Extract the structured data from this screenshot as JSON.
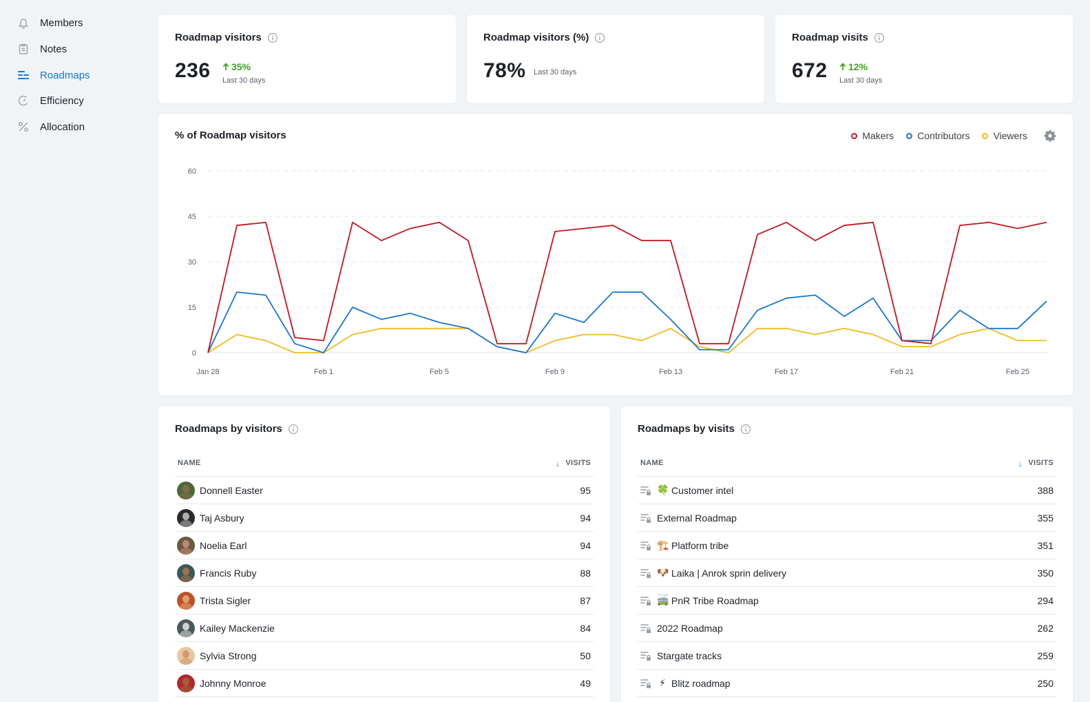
{
  "sidebar": {
    "items": [
      {
        "label": "Members",
        "icon": "bell-icon",
        "active": false
      },
      {
        "label": "Notes",
        "icon": "clipboard-icon",
        "active": false
      },
      {
        "label": "Roadmaps",
        "icon": "roadmap-icon",
        "active": true
      },
      {
        "label": "Efficiency",
        "icon": "gauge-icon",
        "active": false
      },
      {
        "label": "Allocation",
        "icon": "percent-icon",
        "active": false
      }
    ]
  },
  "stats": [
    {
      "title": "Roadmap visitors",
      "value": "236",
      "change": "35%",
      "period": "Last 30 days"
    },
    {
      "title": "Roadmap visitors (%)",
      "value": "78%",
      "change": "",
      "period": "Last 30 days"
    },
    {
      "title": "Roadmap visits",
      "value": "672",
      "change": "12%",
      "period": "Last 30 days"
    }
  ],
  "chart_panel": {
    "title": "% of Roadmap visitors"
  },
  "chart_data": {
    "type": "line",
    "title": "% of Roadmap visitors",
    "x_ticks": [
      "Jan 28",
      "Feb 1",
      "Feb 5",
      "Feb 9",
      "Feb 13",
      "Feb 17",
      "Feb 21",
      "Feb 25"
    ],
    "y_ticks": [
      "0",
      "15",
      "30",
      "45",
      "60"
    ],
    "ylim": [
      0,
      60
    ],
    "x_start": "Jan 28",
    "x": [
      "Jan 28",
      "Jan 29",
      "Jan 30",
      "Jan 31",
      "Feb 1",
      "Feb 2",
      "Feb 3",
      "Feb 4",
      "Feb 5",
      "Feb 6",
      "Feb 7",
      "Feb 8",
      "Feb 9",
      "Feb 10",
      "Feb 11",
      "Feb 12",
      "Feb 13",
      "Feb 14",
      "Feb 15",
      "Feb 16",
      "Feb 17",
      "Feb 18",
      "Feb 19",
      "Feb 20",
      "Feb 21",
      "Feb 22",
      "Feb 23",
      "Feb 24",
      "Feb 25",
      "Feb 26"
    ],
    "grid": true,
    "legend_position": "top-right",
    "series": [
      {
        "name": "Makers",
        "color": "#c4161c",
        "values": [
          0,
          42,
          43,
          5,
          4,
          43,
          37,
          41,
          43,
          37,
          3,
          3,
          40,
          41,
          42,
          37,
          37,
          3,
          3,
          39,
          43,
          37,
          42,
          43,
          4,
          3,
          42,
          43,
          41,
          43
        ]
      },
      {
        "name": "Contributors",
        "color": "#1676d2",
        "values": [
          0,
          20,
          19,
          3,
          0,
          15,
          11,
          13,
          10,
          8,
          2,
          0,
          13,
          10,
          20,
          20,
          11,
          1,
          1,
          14,
          18,
          19,
          12,
          18,
          4,
          4,
          14,
          8,
          8,
          17
        ]
      },
      {
        "name": "Viewers",
        "color": "#f2bb1d",
        "values": [
          0,
          6,
          4,
          0,
          0,
          6,
          8,
          8,
          8,
          8,
          2,
          0,
          4,
          6,
          6,
          4,
          8,
          2,
          0,
          8,
          8,
          6,
          8,
          6,
          2,
          2,
          6,
          8,
          4,
          4
        ]
      }
    ]
  },
  "visitors_table": {
    "title": "Roadmaps by visitors",
    "col_name": "NAME",
    "col_visits": "VISITS",
    "rows": [
      {
        "name": "Donnell Easter",
        "value": "95",
        "face": "#8a6a4a",
        "bg": "#4a6b3a"
      },
      {
        "name": "Taj Asbury",
        "value": "94",
        "face": "#b0b0b0",
        "bg": "#2a2a2a"
      },
      {
        "name": "Noelia Earl",
        "value": "94",
        "face": "#c08a70",
        "bg": "#6a5a40"
      },
      {
        "name": "Francis Ruby",
        "value": "88",
        "face": "#a07050",
        "bg": "#3a5a5a"
      },
      {
        "name": "Trista Sigler",
        "value": "87",
        "face": "#e0a070",
        "bg": "#c0502a"
      },
      {
        "name": "Kailey Mackenzie",
        "value": "84",
        "face": "#d0d0d0",
        "bg": "#4a5a5a"
      },
      {
        "name": "Sylvia Strong",
        "value": "50",
        "face": "#d09a70",
        "bg": "#e8c8a0"
      },
      {
        "name": "Johnny Monroe",
        "value": "49",
        "face": "#a06040",
        "bg": "#b02a2a"
      }
    ]
  },
  "visits_table": {
    "title": "Roadmaps by visits",
    "col_name": "NAME",
    "col_visits": "VISITS",
    "rows": [
      {
        "emoji": "🍀",
        "name": "Customer intel",
        "value": "388"
      },
      {
        "emoji": "",
        "name": "External Roadmap",
        "value": "355"
      },
      {
        "emoji": "🏗️",
        "name": "Platform tribe",
        "value": "351"
      },
      {
        "emoji": "🐶",
        "name": "Laika | Anrok sprin delivery",
        "value": "350"
      },
      {
        "emoji": "🚎",
        "name": "PnR Tribe Roadmap",
        "value": "294"
      },
      {
        "emoji": "",
        "name": "2022 Roadmap",
        "value": "262"
      },
      {
        "emoji": "",
        "name": "Stargate tracks",
        "value": "259"
      },
      {
        "emoji": "⚡",
        "name": "Blitz roadmap",
        "value": "250"
      }
    ]
  }
}
